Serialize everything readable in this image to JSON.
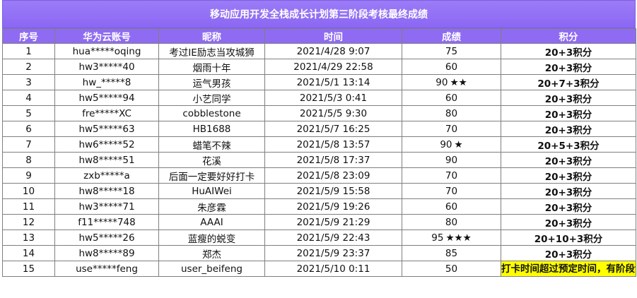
{
  "title": "移动应用开发全栈成长计划第三阶段考核最终成绩",
  "headers": [
    "序号",
    "华为云账号",
    "昵称",
    "时间",
    "成绩",
    "积分"
  ],
  "rows": [
    {
      "no": "1",
      "account": "hua*****oqing",
      "nickname": "考过IE励志当攻城狮",
      "time": "2021/4/28 9:07",
      "score": "75",
      "stars": "",
      "points": "20+3积分"
    },
    {
      "no": "2",
      "account": "hw3*****40",
      "nickname": "烟雨十年",
      "time": "2021/4/29 22:58",
      "score": "60",
      "stars": "",
      "points": "20+3积分"
    },
    {
      "no": "3",
      "account": "hw_*****8",
      "nickname": "运气男孩",
      "time": "2021/5/1 13:14",
      "score": "90",
      "stars": "★★",
      "points": "20+7+3积分"
    },
    {
      "no": "4",
      "account": "hw5*****94",
      "nickname": "小艺同学",
      "time": "2021/5/3 0:41",
      "score": "60",
      "stars": "",
      "points": "20+3积分"
    },
    {
      "no": "5",
      "account": "fre*****XC",
      "nickname": "cobblestone",
      "time": "2021/5/5 9:30",
      "score": "80",
      "stars": "",
      "points": "20+3积分"
    },
    {
      "no": "6",
      "account": "hw5*****63",
      "nickname": "HB1688",
      "time": "2021/5/7 16:25",
      "score": "70",
      "stars": "",
      "points": "20+3积分"
    },
    {
      "no": "7",
      "account": "hw6*****52",
      "nickname": "蜡笔不辣",
      "time": "2021/5/8 13:57",
      "score": "90",
      "stars": "★",
      "points": "20+5+3积分"
    },
    {
      "no": "8",
      "account": "hw8*****51",
      "nickname": "花溪",
      "time": "2021/5/8 17:37",
      "score": "90",
      "stars": "",
      "points": "20+3积分"
    },
    {
      "no": "9",
      "account": "zxb*****a",
      "nickname": "后面一定要好好打卡",
      "time": "2021/5/8 23:09",
      "score": "70",
      "stars": "",
      "points": "20+3积分"
    },
    {
      "no": "10",
      "account": "hw8*****18",
      "nickname": "HuAIWei",
      "time": "2021/5/9 15:58",
      "score": "70",
      "stars": "",
      "points": "20+3积分"
    },
    {
      "no": "11",
      "account": "hw3*****71",
      "nickname": "朱彦霖",
      "time": "2021/5/9 19:26",
      "score": "60",
      "stars": "",
      "points": "20+3积分"
    },
    {
      "no": "12",
      "account": "f11*****748",
      "nickname": "AAAI",
      "time": "2021/5/9 21:29",
      "score": "80",
      "stars": "",
      "points": "20+3积分"
    },
    {
      "no": "13",
      "account": "hw5*****26",
      "nickname": "蓝瘦的蜕变",
      "time": "2021/5/9 22:43",
      "score": "95",
      "stars": "★★★",
      "points": "20+10+3积分"
    },
    {
      "no": "14",
      "account": "hw8*****89",
      "nickname": "郑杰",
      "time": "2021/5/9 23:37",
      "score": "85",
      "stars": "",
      "points": "20+3积分"
    },
    {
      "no": "15",
      "account": "use*****feng",
      "nickname": "user_beifeng",
      "time": "2021/5/10 0:11",
      "score": "50",
      "stars": "",
      "points": "打卡时间超过预定时间，有阶段证书，无积分",
      "note_color": "#ffff00"
    }
  ]
}
